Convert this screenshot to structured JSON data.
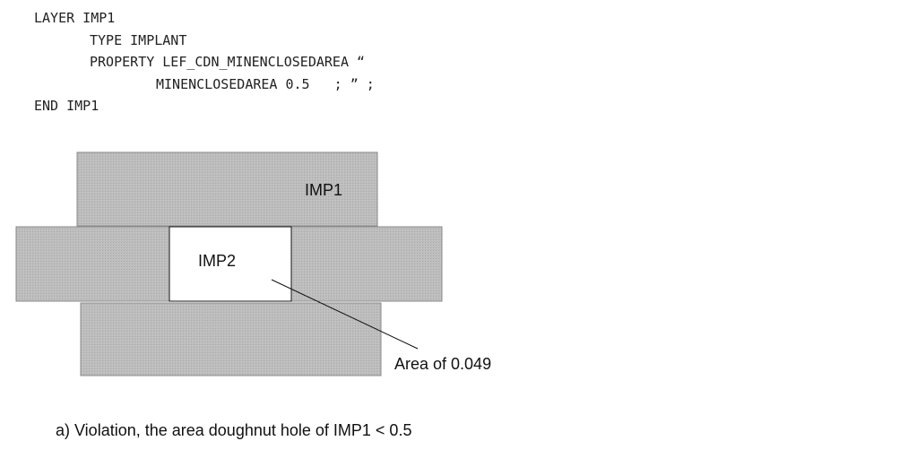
{
  "code": {
    "line1": "LAYER IMP1",
    "line2": "TYPE IMPLANT",
    "line3": "PROPERTY LEF_CDN_MINENCLOSEDAREA “",
    "line4": "MINENCLOSEDAREA 0.5   ; ” ;",
    "line5": "END IMP1"
  },
  "diagram": {
    "label_imp1": "IMP1",
    "label_imp2": "IMP2",
    "annotation": "Area of 0.049",
    "colors": {
      "imp1_fill": "#bdbdbd",
      "imp1_stroke": "#8a8a8a",
      "hole_fill": "#ffffff",
      "line": "#111111"
    }
  },
  "caption": "a) Violation, the area doughnut hole of IMP1 < 0.5"
}
